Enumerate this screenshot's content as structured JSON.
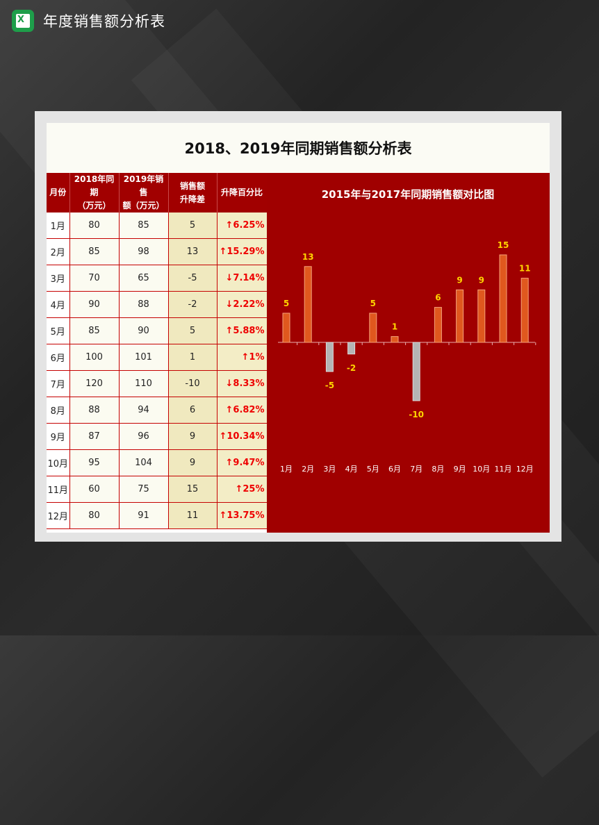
{
  "app": {
    "title": "年度销售额分析表"
  },
  "sheet": {
    "title": "2018、2019年同期销售额分析表"
  },
  "table": {
    "headers": {
      "month": "月份",
      "y2018": [
        "2018年同期",
        "（万元）"
      ],
      "y2019": [
        "2019年销售",
        "额（万元）"
      ],
      "diff": [
        "销售额",
        "升降差"
      ],
      "pct": "升降百分比"
    },
    "rows": [
      {
        "month": "1月",
        "y2018": "80",
        "y2019": "85",
        "diff": "5",
        "pct": "↑6.25%"
      },
      {
        "month": "2月",
        "y2018": "85",
        "y2019": "98",
        "diff": "13",
        "pct": "↑15.29%"
      },
      {
        "month": "3月",
        "y2018": "70",
        "y2019": "65",
        "diff": "-5",
        "pct": "↓7.14%"
      },
      {
        "month": "4月",
        "y2018": "90",
        "y2019": "88",
        "diff": "-2",
        "pct": "↓2.22%"
      },
      {
        "month": "5月",
        "y2018": "85",
        "y2019": "90",
        "diff": "5",
        "pct": "↑5.88%"
      },
      {
        "month": "6月",
        "y2018": "100",
        "y2019": "101",
        "diff": "1",
        "pct": "↑1%"
      },
      {
        "month": "7月",
        "y2018": "120",
        "y2019": "110",
        "diff": "-10",
        "pct": "↓8.33%"
      },
      {
        "month": "8月",
        "y2018": "88",
        "y2019": "94",
        "diff": "6",
        "pct": "↑6.82%"
      },
      {
        "month": "9月",
        "y2018": "87",
        "y2019": "96",
        "diff": "9",
        "pct": "↑10.34%"
      },
      {
        "month": "10月",
        "y2018": "95",
        "y2019": "104",
        "diff": "9",
        "pct": "↑9.47%"
      },
      {
        "month": "11月",
        "y2018": "60",
        "y2019": "75",
        "diff": "15",
        "pct": "↑25%"
      },
      {
        "month": "12月",
        "y2018": "80",
        "y2019": "91",
        "diff": "11",
        "pct": "↑13.75%"
      }
    ]
  },
  "chart_data": {
    "type": "bar",
    "title": "2015年与2017年同期销售额对比图",
    "categories": [
      "1月",
      "2月",
      "3月",
      "4月",
      "5月",
      "6月",
      "7月",
      "8月",
      "9月",
      "10月",
      "11月",
      "12月"
    ],
    "values": [
      5,
      13,
      -5,
      -2,
      5,
      1,
      -10,
      6,
      9,
      9,
      15,
      11
    ],
    "ylim": [
      -10,
      15
    ],
    "grid": false,
    "colors": {
      "positive": "#e0581e",
      "negative": "#b5b5b5",
      "labels": "#ffd400",
      "background": "#a00000"
    }
  }
}
